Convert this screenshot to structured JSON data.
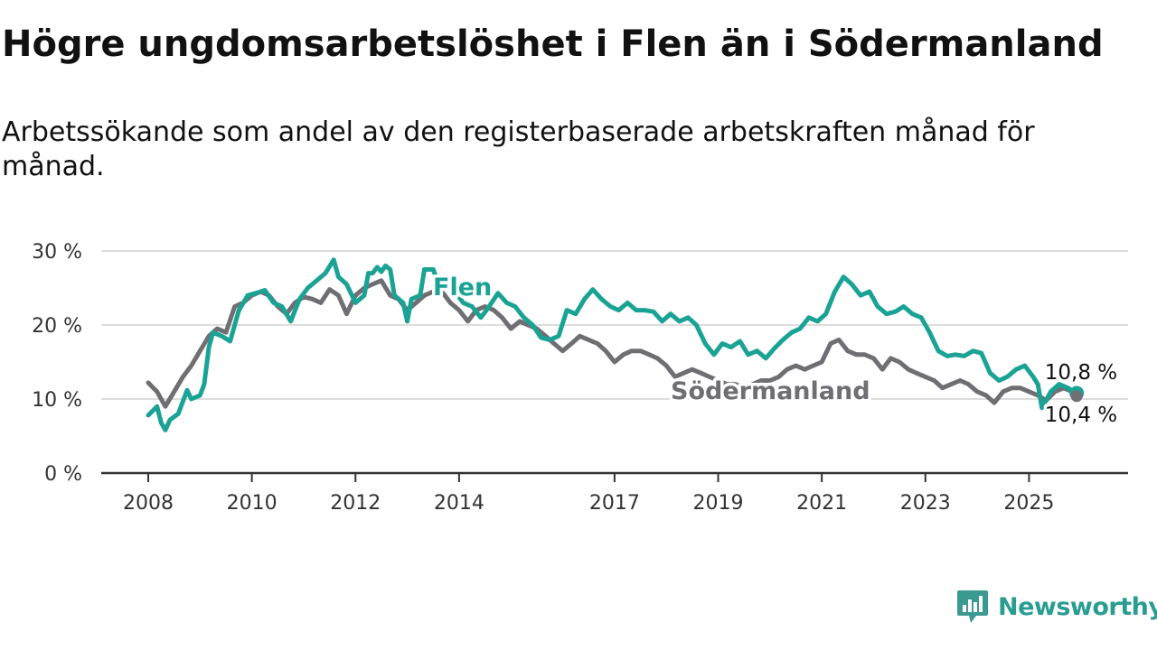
{
  "header": {
    "title": "Högre ungdomsarbetslöshet i Flen än i Södermanland",
    "subtitle": "Arbetssökande som andel av den registerbaserade arbetskraften månad för månad."
  },
  "brand": {
    "name": "Newsworthy",
    "icon": "newsworthy-logo-icon",
    "color": "#3a9a92"
  },
  "chart_data": {
    "type": "line",
    "x_axis": {
      "min": 2008.0,
      "max": 2025.9,
      "tick_values": [
        2008,
        2010,
        2012,
        2014,
        2017,
        2019,
        2021,
        2023,
        2025
      ],
      "tick_labels": [
        "2008",
        "2010",
        "2012",
        "2014",
        "2017",
        "2019",
        "2021",
        "2023",
        "2025"
      ]
    },
    "y_axis": {
      "min": 0,
      "max": 30,
      "tick_values": [
        0,
        10,
        20,
        30
      ],
      "tick_labels": [
        "0 %",
        "10 %",
        "20 %",
        "30 %"
      ]
    },
    "grid": true,
    "series": [
      {
        "name": "Flen",
        "color": "#1aa395",
        "end_label": "10,8 %",
        "points": [
          [
            2008.0,
            7.8
          ],
          [
            2008.17,
            9.0
          ],
          [
            2008.25,
            6.8
          ],
          [
            2008.33,
            5.8
          ],
          [
            2008.42,
            7.2
          ],
          [
            2008.58,
            8.0
          ],
          [
            2008.75,
            11.2
          ],
          [
            2008.83,
            10.0
          ],
          [
            2009.0,
            10.5
          ],
          [
            2009.08,
            12.0
          ],
          [
            2009.17,
            17.0
          ],
          [
            2009.25,
            19.0
          ],
          [
            2009.42,
            18.5
          ],
          [
            2009.58,
            17.8
          ],
          [
            2009.75,
            22.0
          ],
          [
            2009.92,
            24.0
          ],
          [
            2010.08,
            24.3
          ],
          [
            2010.25,
            24.7
          ],
          [
            2010.42,
            23.0
          ],
          [
            2010.58,
            22.5
          ],
          [
            2010.75,
            20.5
          ],
          [
            2010.92,
            23.5
          ],
          [
            2011.08,
            25.0
          ],
          [
            2011.25,
            26.0
          ],
          [
            2011.42,
            27.0
          ],
          [
            2011.58,
            28.8
          ],
          [
            2011.67,
            26.5
          ],
          [
            2011.83,
            25.5
          ],
          [
            2012.0,
            23.0
          ],
          [
            2012.17,
            24.0
          ],
          [
            2012.25,
            27.0
          ],
          [
            2012.33,
            27.0
          ],
          [
            2012.42,
            27.8
          ],
          [
            2012.5,
            27.2
          ],
          [
            2012.58,
            28.0
          ],
          [
            2012.67,
            27.5
          ],
          [
            2012.75,
            24.0
          ],
          [
            2012.92,
            23.0
          ],
          [
            2013.0,
            20.5
          ],
          [
            2013.08,
            23.5
          ],
          [
            2013.25,
            24.0
          ],
          [
            2013.33,
            27.5
          ],
          [
            2013.5,
            27.5
          ],
          [
            2013.58,
            26.0
          ],
          [
            2013.75,
            26.5
          ],
          [
            2013.92,
            24.5
          ],
          [
            2014.08,
            23.0
          ],
          [
            2014.25,
            22.5
          ],
          [
            2014.42,
            21.0
          ],
          [
            2014.58,
            22.5
          ],
          [
            2014.75,
            24.3
          ],
          [
            2014.92,
            23.0
          ],
          [
            2015.08,
            22.5
          ],
          [
            2015.25,
            21.0
          ],
          [
            2015.42,
            20.0
          ],
          [
            2015.58,
            18.3
          ],
          [
            2015.75,
            18.0
          ],
          [
            2015.92,
            18.5
          ],
          [
            2016.08,
            22.0
          ],
          [
            2016.25,
            21.5
          ],
          [
            2016.42,
            23.5
          ],
          [
            2016.58,
            24.8
          ],
          [
            2016.75,
            23.5
          ],
          [
            2016.92,
            22.5
          ],
          [
            2017.08,
            22.0
          ],
          [
            2017.25,
            23.0
          ],
          [
            2017.42,
            22.0
          ],
          [
            2017.58,
            22.0
          ],
          [
            2017.75,
            21.8
          ],
          [
            2017.92,
            20.5
          ],
          [
            2018.08,
            21.5
          ],
          [
            2018.25,
            20.5
          ],
          [
            2018.42,
            21.0
          ],
          [
            2018.58,
            20.0
          ],
          [
            2018.75,
            17.5
          ],
          [
            2018.92,
            16.0
          ],
          [
            2019.08,
            17.5
          ],
          [
            2019.25,
            17.0
          ],
          [
            2019.42,
            17.8
          ],
          [
            2019.58,
            16.0
          ],
          [
            2019.75,
            16.5
          ],
          [
            2019.92,
            15.5
          ],
          [
            2020.08,
            16.8
          ],
          [
            2020.25,
            18.0
          ],
          [
            2020.42,
            19.0
          ],
          [
            2020.58,
            19.5
          ],
          [
            2020.75,
            21.0
          ],
          [
            2020.92,
            20.5
          ],
          [
            2021.08,
            21.5
          ],
          [
            2021.25,
            24.5
          ],
          [
            2021.42,
            26.5
          ],
          [
            2021.58,
            25.5
          ],
          [
            2021.75,
            24.0
          ],
          [
            2021.92,
            24.5
          ],
          [
            2022.08,
            22.5
          ],
          [
            2022.25,
            21.5
          ],
          [
            2022.42,
            21.8
          ],
          [
            2022.58,
            22.5
          ],
          [
            2022.75,
            21.5
          ],
          [
            2022.92,
            21.0
          ],
          [
            2023.08,
            19.0
          ],
          [
            2023.25,
            16.5
          ],
          [
            2023.42,
            15.8
          ],
          [
            2023.58,
            16.0
          ],
          [
            2023.75,
            15.8
          ],
          [
            2023.92,
            16.5
          ],
          [
            2024.08,
            16.2
          ],
          [
            2024.25,
            13.5
          ],
          [
            2024.42,
            12.5
          ],
          [
            2024.58,
            13.0
          ],
          [
            2024.75,
            14.0
          ],
          [
            2024.92,
            14.5
          ],
          [
            2025.08,
            13.0
          ],
          [
            2025.17,
            12.0
          ],
          [
            2025.25,
            8.8
          ],
          [
            2025.42,
            11.0
          ],
          [
            2025.58,
            12.0
          ],
          [
            2025.75,
            11.5
          ],
          [
            2025.92,
            10.8
          ]
        ]
      },
      {
        "name": "Södermanland",
        "color": "#6e6e73",
        "end_label": "10,4 %",
        "points": [
          [
            2008.0,
            12.2
          ],
          [
            2008.17,
            11.0
          ],
          [
            2008.33,
            9.0
          ],
          [
            2008.5,
            11.0
          ],
          [
            2008.67,
            13.0
          ],
          [
            2008.83,
            14.5
          ],
          [
            2009.0,
            16.5
          ],
          [
            2009.17,
            18.5
          ],
          [
            2009.33,
            19.5
          ],
          [
            2009.5,
            19.0
          ],
          [
            2009.67,
            22.5
          ],
          [
            2009.83,
            23.0
          ],
          [
            2010.0,
            24.0
          ],
          [
            2010.17,
            24.5
          ],
          [
            2010.33,
            24.0
          ],
          [
            2010.5,
            22.5
          ],
          [
            2010.67,
            21.5
          ],
          [
            2010.83,
            23.0
          ],
          [
            2011.0,
            23.8
          ],
          [
            2011.17,
            23.5
          ],
          [
            2011.33,
            23.0
          ],
          [
            2011.5,
            24.8
          ],
          [
            2011.67,
            24.0
          ],
          [
            2011.83,
            21.5
          ],
          [
            2012.0,
            24.0
          ],
          [
            2012.17,
            25.0
          ],
          [
            2012.33,
            25.5
          ],
          [
            2012.5,
            26.0
          ],
          [
            2012.67,
            24.0
          ],
          [
            2012.83,
            23.5
          ],
          [
            2013.0,
            22.0
          ],
          [
            2013.17,
            23.0
          ],
          [
            2013.33,
            24.0
          ],
          [
            2013.5,
            24.5
          ],
          [
            2013.67,
            24.5
          ],
          [
            2013.83,
            23.0
          ],
          [
            2014.0,
            22.0
          ],
          [
            2014.17,
            20.5
          ],
          [
            2014.33,
            22.0
          ],
          [
            2014.5,
            22.5
          ],
          [
            2014.67,
            22.0
          ],
          [
            2014.83,
            21.0
          ],
          [
            2015.0,
            19.5
          ],
          [
            2015.17,
            20.5
          ],
          [
            2015.33,
            20.0
          ],
          [
            2015.5,
            19.5
          ],
          [
            2015.67,
            18.5
          ],
          [
            2015.83,
            17.5
          ],
          [
            2016.0,
            16.5
          ],
          [
            2016.17,
            17.5
          ],
          [
            2016.33,
            18.5
          ],
          [
            2016.5,
            18.0
          ],
          [
            2016.67,
            17.5
          ],
          [
            2016.83,
            16.5
          ],
          [
            2017.0,
            15.0
          ],
          [
            2017.17,
            16.0
          ],
          [
            2017.33,
            16.5
          ],
          [
            2017.5,
            16.5
          ],
          [
            2017.67,
            16.0
          ],
          [
            2017.83,
            15.5
          ],
          [
            2018.0,
            14.5
          ],
          [
            2018.17,
            13.0
          ],
          [
            2018.33,
            13.5
          ],
          [
            2018.5,
            14.0
          ],
          [
            2018.67,
            13.5
          ],
          [
            2018.83,
            13.0
          ],
          [
            2019.0,
            12.5
          ],
          [
            2019.17,
            12.0
          ],
          [
            2019.33,
            12.0
          ],
          [
            2019.5,
            11.5
          ],
          [
            2019.67,
            12.0
          ],
          [
            2019.83,
            12.5
          ],
          [
            2020.0,
            12.5
          ],
          [
            2020.17,
            13.0
          ],
          [
            2020.33,
            14.0
          ],
          [
            2020.5,
            14.5
          ],
          [
            2020.67,
            14.0
          ],
          [
            2020.83,
            14.5
          ],
          [
            2021.0,
            15.0
          ],
          [
            2021.17,
            17.5
          ],
          [
            2021.33,
            18.0
          ],
          [
            2021.5,
            16.5
          ],
          [
            2021.67,
            16.0
          ],
          [
            2021.83,
            16.0
          ],
          [
            2022.0,
            15.5
          ],
          [
            2022.17,
            14.0
          ],
          [
            2022.33,
            15.5
          ],
          [
            2022.5,
            15.0
          ],
          [
            2022.67,
            14.0
          ],
          [
            2022.83,
            13.5
          ],
          [
            2023.0,
            13.0
          ],
          [
            2023.17,
            12.5
          ],
          [
            2023.33,
            11.5
          ],
          [
            2023.5,
            12.0
          ],
          [
            2023.67,
            12.5
          ],
          [
            2023.83,
            12.0
          ],
          [
            2024.0,
            11.0
          ],
          [
            2024.17,
            10.5
          ],
          [
            2024.33,
            9.5
          ],
          [
            2024.5,
            11.0
          ],
          [
            2024.67,
            11.5
          ],
          [
            2024.83,
            11.5
          ],
          [
            2025.0,
            11.0
          ],
          [
            2025.17,
            10.5
          ],
          [
            2025.33,
            9.8
          ],
          [
            2025.5,
            11.0
          ],
          [
            2025.67,
            11.5
          ],
          [
            2025.83,
            11.0
          ],
          [
            2025.92,
            10.4
          ]
        ]
      }
    ]
  }
}
